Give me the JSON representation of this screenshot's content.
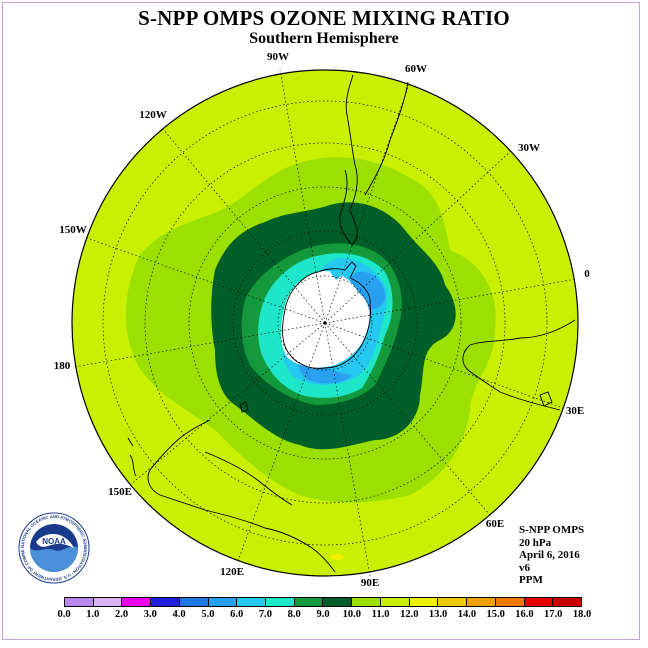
{
  "header": {
    "title": "S-NPP OMPS OZONE MIXING RATIO",
    "subtitle": "Southern Hemisphere"
  },
  "map": {
    "projection": "south polar stereographic",
    "longitude_labels": [
      "90W",
      "60W",
      "30W",
      "0",
      "30E",
      "60E",
      "90E",
      "120E",
      "150E",
      "180",
      "150W",
      "120W"
    ],
    "ocean_color": "#c8f000",
    "contours": [
      {
        "level": "10.0–11.0",
        "color": "#9be000"
      },
      {
        "level": "9.0–10.0",
        "color": "#005f28"
      },
      {
        "level": "8.0–9.0",
        "color": "#149a3c"
      },
      {
        "level": "7.0–8.0",
        "color": "#1ee6c8"
      },
      {
        "level": "6.0–7.0",
        "color": "#24c8f0"
      },
      {
        "level": "5.0–6.0",
        "color": "#28a0f0"
      }
    ]
  },
  "info": {
    "instrument": "S-NPP OMPS",
    "pressure": "20 hPa",
    "date": "April 6, 2016",
    "version": "v6",
    "units": "PPM"
  },
  "colorbar": {
    "ticks": [
      "0.0",
      "1.0",
      "2.0",
      "3.0",
      "4.0",
      "5.0",
      "6.0",
      "7.0",
      "8.0",
      "9.0",
      "10.0",
      "11.0",
      "12.0",
      "13.0",
      "14.0",
      "15.0",
      "16.0",
      "17.0",
      "18.0"
    ],
    "colors": [
      "#bb88ee",
      "#dcb4f4",
      "#ee00ee",
      "#2020e0",
      "#1e78e6",
      "#28a0f0",
      "#24c8f0",
      "#1ee6c8",
      "#149a3c",
      "#005f28",
      "#9be000",
      "#c8f000",
      "#f0f000",
      "#f0c800",
      "#f0a000",
      "#f07800",
      "#e60000",
      "#c80000",
      "#8c5a3c"
    ]
  },
  "logo": {
    "text": "NOAA",
    "ring_text": "NATIONAL OCEANIC AND ATMOSPHERIC ADMINISTRATION · U.S. DEPARTMENT OF COMMERCE"
  }
}
